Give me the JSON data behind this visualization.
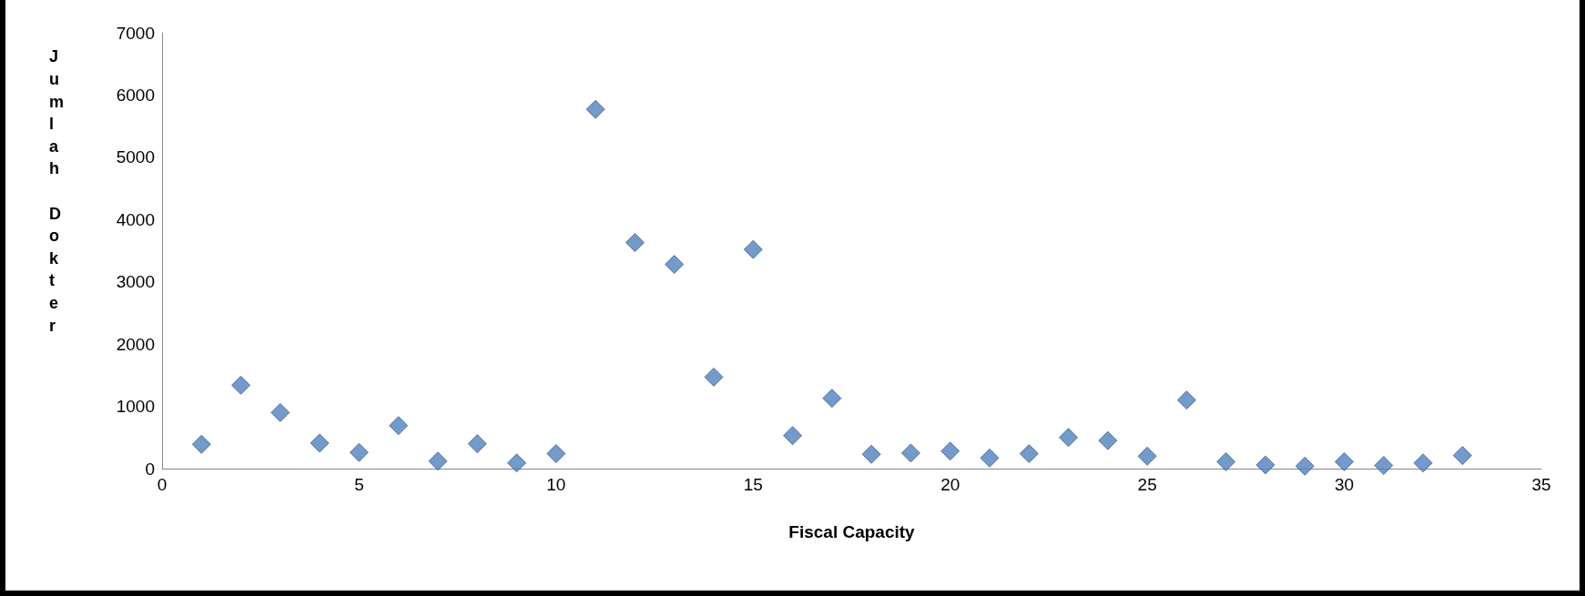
{
  "chart_data": {
    "type": "scatter",
    "xlabel": "Fiscal Capacity",
    "ylabel": "Jumlah Dokter",
    "marker": "diamond",
    "grid": false,
    "xlim": [
      0,
      35
    ],
    "xticks": [
      0,
      5,
      10,
      15,
      20,
      25,
      30,
      35
    ],
    "ylim": [
      0,
      7000
    ],
    "yticks": [
      0,
      1000,
      2000,
      3000,
      4000,
      5000,
      6000,
      7000
    ],
    "series": [
      {
        "color": "#4f81bd",
        "x": [
          1,
          2,
          3,
          4,
          5,
          6,
          7,
          8,
          9,
          10,
          11,
          12,
          13,
          14,
          15,
          16,
          17,
          18,
          19,
          20,
          21,
          22,
          23,
          24,
          25,
          26,
          27,
          28,
          29,
          30,
          31,
          32,
          33
        ],
        "values": [
          390,
          1340,
          900,
          410,
          260,
          690,
          120,
          400,
          90,
          240,
          5770,
          3630,
          3280,
          1470,
          3520,
          530,
          1130,
          230,
          250,
          280,
          170,
          240,
          500,
          450,
          200,
          1100,
          110,
          60,
          40,
          110,
          50,
          90,
          210
        ]
      }
    ]
  }
}
